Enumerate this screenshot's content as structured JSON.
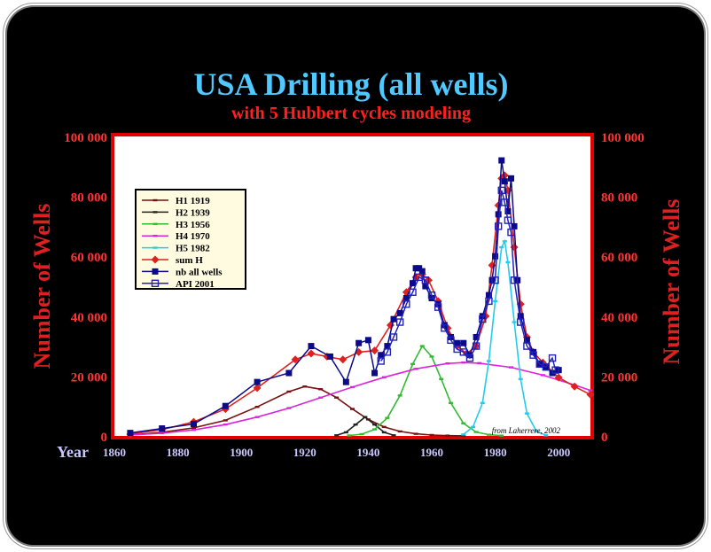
{
  "chart_data": {
    "type": "line",
    "title": "USA Drilling (all wells)",
    "subtitle": "with 5 Hubbert cycles modeling",
    "xlabel": "Year",
    "ylabel_left": "Number of Wells",
    "ylabel_right": "Number of Wells",
    "source_note": "from Laherrere, 2002",
    "xlim": [
      1860,
      2010
    ],
    "ylim": [
      0,
      100000
    ],
    "x_ticks": [
      "1860",
      "1880",
      "1900",
      "1920",
      "1940",
      "1960",
      "1980",
      "2000"
    ],
    "x_tick_values": [
      1860,
      1880,
      1900,
      1920,
      1940,
      1960,
      1980,
      2000
    ],
    "y_ticks": [
      "0",
      "20 000",
      "40 000",
      "60 000",
      "80 000",
      "100 000"
    ],
    "y_tick_values": [
      0,
      20000,
      40000,
      60000,
      80000,
      100000
    ],
    "legend_position": "upper-left",
    "colors": {
      "title": "#4fc9ff",
      "subtitle": "#ff2020",
      "axis_text": "#ff3333",
      "x_tick_text": "#c8c8ff",
      "plot_border": "#e00000",
      "plot_bg": "#ffffff"
    },
    "series": [
      {
        "name": "H1 1919",
        "color": "#7a0f0f",
        "marker": "dash",
        "x": [
          1865,
          1875,
          1885,
          1895,
          1905,
          1915,
          1920,
          1925,
          1930,
          1935,
          1940,
          1945,
          1950,
          1955,
          1960,
          1965,
          1970
        ],
        "y": [
          300,
          1200,
          2700,
          5200,
          9700,
          14800,
          16500,
          15600,
          12800,
          9000,
          5500,
          3000,
          1500,
          700,
          300,
          100,
          40
        ]
      },
      {
        "name": "H2 1939",
        "color": "#222222",
        "marker": "dash",
        "x": [
          1930,
          1933,
          1936,
          1939,
          1942,
          1945,
          1948
        ],
        "y": [
          200,
          1200,
          3800,
          6300,
          3800,
          1200,
          200
        ]
      },
      {
        "name": "H3 1956",
        "color": "#33bb33",
        "marker": "dash",
        "x": [
          1934,
          1938,
          1942,
          1946,
          1950,
          1954,
          1957,
          1960,
          1963,
          1966,
          1970,
          1974,
          1978,
          1982
        ],
        "y": [
          150,
          600,
          2200,
          6000,
          13500,
          24000,
          30000,
          26500,
          19000,
          11000,
          4200,
          1300,
          400,
          100
        ]
      },
      {
        "name": "H4 1970",
        "color": "#dd22dd",
        "marker": "dash",
        "x": [
          1865,
          1875,
          1885,
          1895,
          1905,
          1915,
          1925,
          1935,
          1945,
          1955,
          1965,
          1970,
          1975,
          1985,
          1995,
          2005,
          2010
        ],
        "y": [
          300,
          900,
          2000,
          3800,
          6300,
          9300,
          12800,
          16300,
          19600,
          22400,
          24200,
          24500,
          24300,
          22900,
          20300,
          17000,
          15200
        ]
      },
      {
        "name": "H5 1982",
        "color": "#22ccee",
        "marker": "dash",
        "x": [
          1970,
          1973,
          1976,
          1978,
          1980,
          1982,
          1983,
          1984,
          1986,
          1988,
          1990,
          1993,
          1996
        ],
        "y": [
          500,
          3000,
          11000,
          25000,
          45000,
          63000,
          65000,
          58000,
          38000,
          19000,
          7500,
          1500,
          200
        ]
      },
      {
        "name": "sum H",
        "color": "#e02020",
        "marker": "diamond",
        "x": [
          1865,
          1875,
          1885,
          1895,
          1905,
          1917,
          1922,
          1927,
          1932,
          1937,
          1942,
          1947,
          1952,
          1955,
          1957,
          1959,
          1962,
          1965,
          1968,
          1971,
          1974,
          1977,
          1979,
          1981,
          1982,
          1983,
          1984,
          1986,
          1988,
          1990,
          1992,
          1995,
          2000,
          2005,
          2010
        ],
        "y": [
          600,
          2100,
          4700,
          9000,
          16000,
          25500,
          27500,
          26500,
          25500,
          28000,
          28500,
          37000,
          48000,
          53000,
          54000,
          52000,
          45000,
          36000,
          30000,
          27500,
          30000,
          40000,
          57000,
          77000,
          86000,
          87000,
          82000,
          63000,
          44000,
          33000,
          28000,
          24500,
          19500,
          16500,
          13800
        ]
      },
      {
        "name": "nb all wells",
        "color": "#0a0a8a",
        "marker": "square",
        "x": [
          1865,
          1875,
          1885,
          1895,
          1905,
          1915,
          1922,
          1928,
          1933,
          1937,
          1940,
          1942,
          1944,
          1946,
          1948,
          1950,
          1952,
          1954,
          1955,
          1956,
          1957,
          1958,
          1960,
          1962,
          1964,
          1966,
          1968,
          1970,
          1972,
          1974,
          1976,
          1978,
          1979,
          1980,
          1981,
          1982,
          1983,
          1984,
          1985,
          1986,
          1987,
          1988,
          1990,
          1992,
          1994,
          1996,
          1998,
          2000
        ],
        "y": [
          1000,
          2500,
          4000,
          10000,
          18000,
          21000,
          30000,
          26500,
          18000,
          31000,
          32000,
          21000,
          27000,
          30000,
          39000,
          41000,
          46000,
          51000,
          56000,
          56000,
          55000,
          50000,
          46000,
          44000,
          37000,
          33000,
          31000,
          31000,
          27000,
          33000,
          40000,
          47000,
          52000,
          60000,
          74000,
          92000,
          85000,
          75000,
          86000,
          70000,
          52000,
          40000,
          32000,
          28000,
          24000,
          23000,
          21000,
          22000
        ]
      },
      {
        "name": "API 2001",
        "color": "#2222bb",
        "marker": "open-square",
        "x": [
          1944,
          1946,
          1948,
          1950,
          1952,
          1954,
          1956,
          1958,
          1960,
          1962,
          1964,
          1966,
          1968,
          1970,
          1972,
          1974,
          1976,
          1978,
          1980,
          1981,
          1982,
          1983,
          1984,
          1985,
          1986,
          1988,
          1990,
          1992,
          1994,
          1996,
          1998,
          1999
        ],
        "y": [
          25000,
          28000,
          33000,
          38000,
          44000,
          48000,
          53000,
          52000,
          47000,
          43000,
          36000,
          32000,
          29000,
          28000,
          26000,
          30000,
          39000,
          45000,
          52000,
          70000,
          82000,
          78000,
          72000,
          68000,
          52000,
          38000,
          30000,
          27000,
          24000,
          23000,
          26000,
          22000
        ]
      }
    ]
  }
}
